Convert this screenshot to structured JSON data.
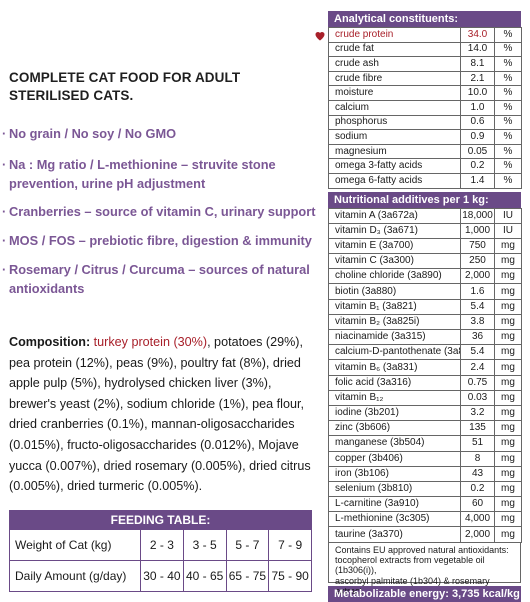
{
  "intro": {
    "line1": "COMPLETE CAT FOOD FOR ADULT",
    "line2": "STERILISED CATS."
  },
  "bullets": [
    [
      "No grain / No soy / No GMO"
    ],
    [
      "Na : Mg ratio / L-methionine – struvite stone",
      "prevention, urine pH adjustment"
    ],
    [
      "Cranberries – source of vitamin C, urinary support"
    ],
    [
      "MOS / FOS – prebiotic fibre, digestion & immunity"
    ],
    [
      "Rosemary / Citrus / Curcuma – sources of natural",
      "antioxidants"
    ]
  ],
  "composition": {
    "label": "Composition:",
    "highlight": "turkey protein (30%)",
    "rest": ", potatoes (29%), pea protein (12%), peas (9%), poultry fat (8%), dried apple pulp (5%), hydrolysed chicken liver (3%), brewer's yeast (2%), sodium chloride (1%), pea flour, dried cranberries (0.1%), mannan-oligosaccharides (0.015%), fructo-oligosaccharides (0.012%), Mojave yucca (0.007%), dried rosemary (0.005%), dried citrus (0.005%), dried turmeric (0.005%)."
  },
  "feeding": {
    "title": "FEEDING TABLE:",
    "weight_label": "Weight of Cat (kg)",
    "weights": [
      "2 - 3",
      "3 - 5",
      "5 - 7",
      "7 - 9"
    ],
    "amount_label": "Daily Amount (g/day)",
    "amounts": [
      "30 - 40",
      "40 - 65",
      "65 - 75",
      "75 - 90"
    ]
  },
  "analytical": {
    "title": "Analytical constituents:",
    "rows": [
      {
        "name": "crude protein",
        "value": "34.0",
        "unit": "%"
      },
      {
        "name": "crude fat",
        "value": "14.0",
        "unit": "%"
      },
      {
        "name": "crude ash",
        "value": "8.1",
        "unit": "%"
      },
      {
        "name": "crude fibre",
        "value": "2.1",
        "unit": "%"
      },
      {
        "name": "moisture",
        "value": "10.0",
        "unit": "%"
      },
      {
        "name": "calcium",
        "value": "1.0",
        "unit": "%"
      },
      {
        "name": "phosphorus",
        "value": "0.6",
        "unit": "%"
      },
      {
        "name": "sodium",
        "value": "0.9",
        "unit": "%"
      },
      {
        "name": "magnesium",
        "value": "0.05",
        "unit": "%"
      },
      {
        "name": "omega 3-fatty acids",
        "value": "0.2",
        "unit": "%"
      },
      {
        "name": "omega 6-fatty acids",
        "value": "1.4",
        "unit": "%"
      }
    ]
  },
  "additives": {
    "title": "Nutritional additives per 1 kg:",
    "rows": [
      {
        "name": "vitamin A (3a672a)",
        "value": "18,000",
        "unit": "IU"
      },
      {
        "name": "vitamin D₃ (3a671)",
        "value": "1,000",
        "unit": "IU"
      },
      {
        "name": "vitamin E (3a700)",
        "value": "750",
        "unit": "mg"
      },
      {
        "name": "vitamin C (3a300)",
        "value": "250",
        "unit": "mg"
      },
      {
        "name": "choline chloride (3a890)",
        "value": "2,000",
        "unit": "mg"
      },
      {
        "name": "biotin (3a880)",
        "value": "1.6",
        "unit": "mg"
      },
      {
        "name": "vitamin B₁ (3a821)",
        "value": "5.4",
        "unit": "mg"
      },
      {
        "name": "vitamin B₂ (3a825i)",
        "value": "3.8",
        "unit": "mg"
      },
      {
        "name": "niacinamide (3a315)",
        "value": "36",
        "unit": "mg"
      },
      {
        "name": "calcium-D-pantothenate (3a841)",
        "value": "5.4",
        "unit": "mg"
      },
      {
        "name": "vitamin B₆ (3a831)",
        "value": "2.4",
        "unit": "mg"
      },
      {
        "name": "folic acid (3a316)",
        "value": "0.75",
        "unit": "mg"
      },
      {
        "name": "vitamin B₁₂",
        "value": "0.03",
        "unit": "mg"
      },
      {
        "name": "iodine (3b201)",
        "value": "3.2",
        "unit": "mg"
      },
      {
        "name": "zinc (3b606)",
        "value": "135",
        "unit": "mg"
      },
      {
        "name": "manganese (3b504)",
        "value": "51",
        "unit": "mg"
      },
      {
        "name": "copper (3b406)",
        "value": "8",
        "unit": "mg"
      },
      {
        "name": "iron (3b106)",
        "value": "43",
        "unit": "mg"
      },
      {
        "name": "selenium (3b810)",
        "value": "0.2",
        "unit": "mg"
      },
      {
        "name": "L-carnitine (3a910)",
        "value": "60",
        "unit": "mg"
      },
      {
        "name": "L-methionine (3c305)",
        "value": "4,000",
        "unit": "mg"
      },
      {
        "name": "taurine (3a370)",
        "value": "2,000",
        "unit": "mg"
      }
    ]
  },
  "note": {
    "line1": "Contains EU approved natural antioxidants:",
    "line2": "tocopherol extracts from vegetable oil (1b306(i)),",
    "line3": "ascorbyl palmitate (1b304) & rosemary extract."
  },
  "energy": "Metabolizable energy: 3,735 kcal/kg",
  "colors": {
    "accent": "#6a4a87",
    "bullet_text": "#7b5795",
    "highlight": "#a8202a"
  },
  "icons": {
    "marker": "heart-icon"
  }
}
